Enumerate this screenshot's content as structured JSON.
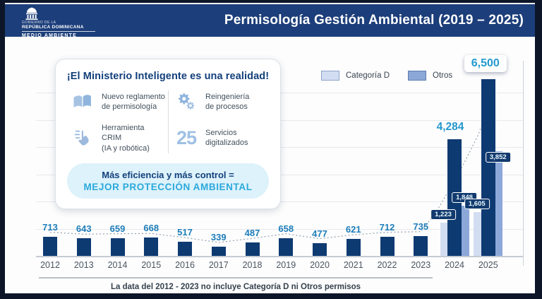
{
  "header": {
    "logo": {
      "line1": "GOBIERNO DE LA",
      "line2": "REPÚBLICA DOMINICANA",
      "line3": "MEDIO AMBIENTE"
    },
    "title": "Permisología Gestión Ambiental (2019 – 2025)"
  },
  "card": {
    "title": "¡El Ministerio Inteligente es una realidad!",
    "items": [
      {
        "icon": "book-icon",
        "line1": "Nuevo reglamento",
        "line2": "de permisología"
      },
      {
        "icon": "gears-icon",
        "line1": "Reingeniería",
        "line2": "de procesos"
      },
      {
        "icon": "robotic-hand-icon",
        "line1": "Herramienta CRIM",
        "line2": "(IA y robótica)"
      },
      {
        "icon": "number-25",
        "number": "25",
        "line1": "Servicios",
        "line2": "digitalizados"
      }
    ],
    "pill": {
      "line1": "Más eficiencia y más control =",
      "line2": "MEJOR PROTECCIÓN AMBIENTAL"
    }
  },
  "legend": {
    "items": [
      {
        "label": "Categoría D",
        "color": "#d3ddf2",
        "border": "#8ea3c9"
      },
      {
        "label": "Otros",
        "color": "#8ca8d9",
        "border": "#5f7bb0"
      }
    ]
  },
  "chart_data": {
    "type": "bar",
    "title": "Permisología Gestión Ambiental (2019 – 2025)",
    "categories": [
      "2012",
      "2013",
      "2014",
      "2015",
      "2016",
      "2017",
      "2018",
      "2019",
      "2020",
      "2021",
      "2022",
      "2023",
      "2024",
      "2025"
    ],
    "series": [
      {
        "name": "",
        "color": "#0e3a72",
        "in_legend": false,
        "values": [
          713,
          643,
          659,
          668,
          517,
          339,
          487,
          658,
          477,
          621,
          712,
          735,
          4284,
          6500
        ]
      },
      {
        "name": "Categoría D",
        "color": "#d3ddf2",
        "in_legend": true,
        "values": [
          null,
          null,
          null,
          null,
          null,
          null,
          null,
          null,
          null,
          null,
          null,
          null,
          1223,
          1605
        ]
      },
      {
        "name": "Otros",
        "color": "#8ca8d9",
        "in_legend": true,
        "values": [
          null,
          null,
          null,
          null,
          null,
          null,
          null,
          null,
          null,
          null,
          null,
          null,
          1848,
          3852
        ]
      }
    ],
    "ylim": [
      0,
      6500
    ],
    "grid": true,
    "legend_position": "top-right",
    "trendline": true
  },
  "footer": {
    "note": "La data del 2012 - 2023 no incluye Categoría D ni Otros permisos"
  },
  "colors": {
    "header_bg": "#1c3e7a",
    "bar_main": "#0e3a72",
    "bar_categoria_d": "#d3ddf2",
    "bar_otros": "#8ca8d9",
    "accent_cyan": "#2398cf",
    "value_label_blue": "#1d7db9",
    "pill_label_bg": "#123a6e"
  }
}
